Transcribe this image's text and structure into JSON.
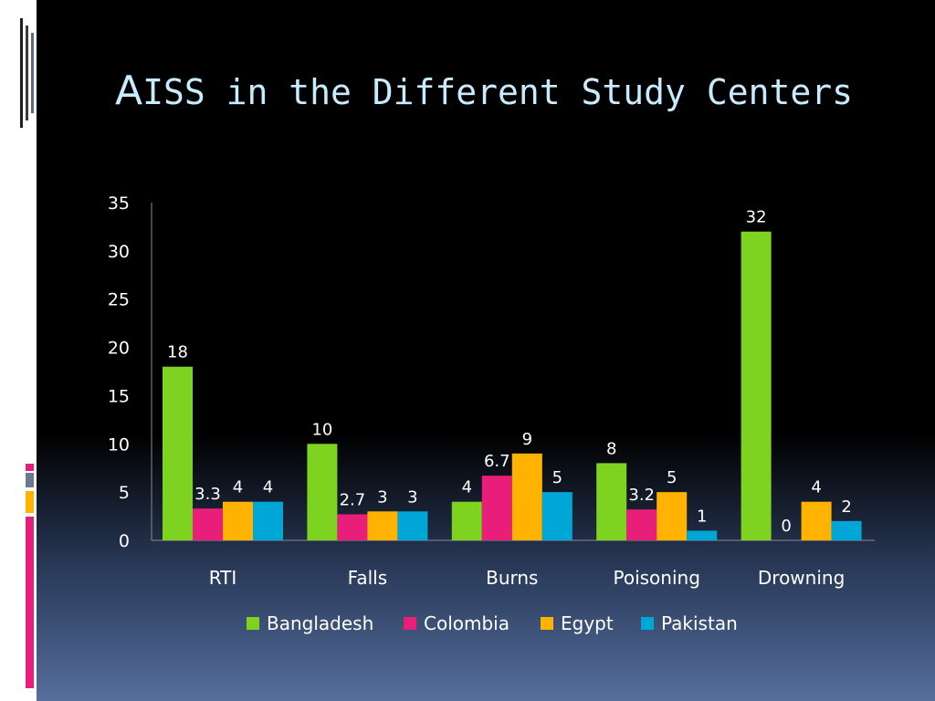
{
  "slide": {
    "title_first": "A",
    "title_rest": "ISS in the Different Study Centers",
    "strip_colors": [
      "#1e1e1e",
      "#3a3a3a",
      "#5a6a80",
      "#e91e7a",
      "#6a7890",
      "#ffb300",
      "#e91e7a"
    ]
  },
  "chart_data": {
    "type": "bar",
    "categories": [
      "RTI",
      "Falls",
      "Burns",
      "Poisoning",
      "Drowning"
    ],
    "series": [
      {
        "name": "Bangladesh",
        "color": "#7ed321",
        "values": [
          18,
          10,
          4,
          8,
          32
        ]
      },
      {
        "name": "Colombia",
        "color": "#e91e7a",
        "values": [
          3.3,
          2.7,
          6.7,
          3.2,
          0
        ]
      },
      {
        "name": "Egypt",
        "color": "#ffb300",
        "values": [
          4,
          3,
          9,
          5,
          4
        ]
      },
      {
        "name": "Pakistan",
        "color": "#00a6d6",
        "values": [
          4,
          3,
          5,
          1,
          2
        ]
      }
    ],
    "yticks": [
      0,
      5,
      10,
      15,
      20,
      25,
      30,
      35
    ],
    "ylim": [
      0,
      35
    ],
    "legend_position": "bottom",
    "grid": false,
    "data_labels": true
  }
}
